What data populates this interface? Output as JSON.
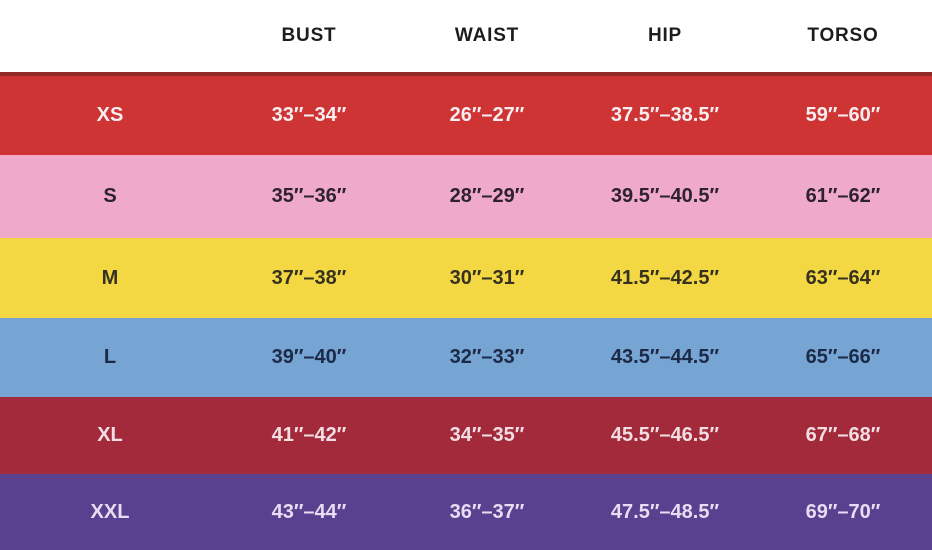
{
  "chart_data": {
    "type": "table",
    "columns": [
      "",
      "BUST",
      "WAIST",
      "HIP",
      "TORSO"
    ],
    "rows": [
      {
        "size": "XS",
        "values": [
          "33″–34″",
          "26″–27″",
          "37.5″–38.5″",
          "59″–60″"
        ],
        "row_bg": "#ce3434",
        "row_fg": "#f8edf0"
      },
      {
        "size": "S",
        "values": [
          "35″–36″",
          "28″–29″",
          "39.5″–40.5″",
          "61″–62″"
        ],
        "row_bg": "#efa9c9",
        "row_fg": "#2e2130"
      },
      {
        "size": "M",
        "values": [
          "37″–38″",
          "30″–31″",
          "41.5″–42.5″",
          "63″–64″"
        ],
        "row_bg": "#f4d843",
        "row_fg": "#37321f"
      },
      {
        "size": "L",
        "values": [
          "39″–40″",
          "32″–33″",
          "43.5″–44.5″",
          "65″–66″"
        ],
        "row_bg": "#76a4d3",
        "row_fg": "#1c2a47"
      },
      {
        "size": "XL",
        "values": [
          "41″–42″",
          "34″–35″",
          "45.5″–46.5″",
          "67″–68″"
        ],
        "row_bg": "#a22a3a",
        "row_fg": "#f2dee3"
      },
      {
        "size": "XXL",
        "values": [
          "43″–44″",
          "36″–37″",
          "47.5″–48.5″",
          "69″–70″"
        ],
        "row_bg": "#59418f",
        "row_fg": "#e7dcf1"
      }
    ],
    "header_bg": "#ffffff",
    "header_fg": "#1d1d1f",
    "separator_color": "#8f2a28",
    "layout": {
      "grid": "off",
      "header_position": "top"
    }
  }
}
